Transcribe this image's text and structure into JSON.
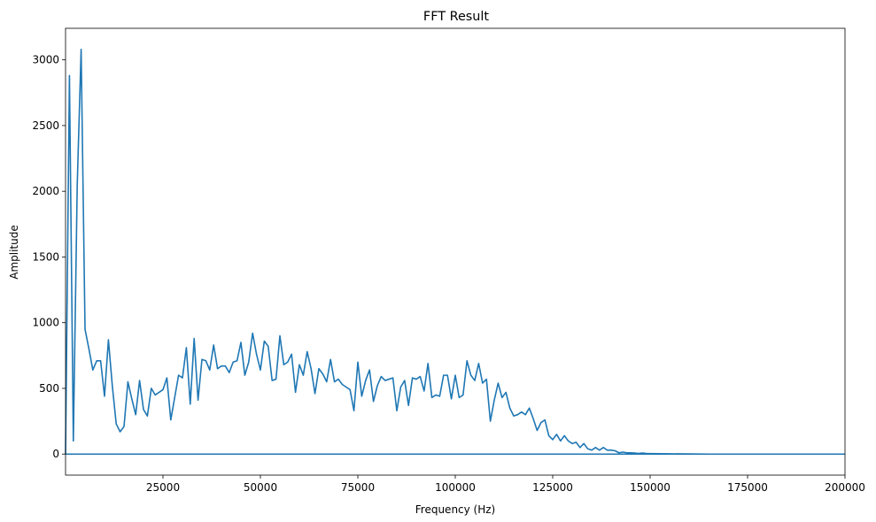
{
  "chart_data": {
    "type": "line",
    "title": "FFT Result",
    "xlabel": "Frequency (Hz)",
    "ylabel": "Amplitude",
    "xlim": [
      0,
      200000
    ],
    "ylim": [
      -160,
      3240
    ],
    "xticks": [
      25000,
      50000,
      75000,
      100000,
      125000,
      150000,
      175000,
      200000
    ],
    "yticks": [
      0,
      500,
      1000,
      1500,
      2000,
      2500,
      3000
    ],
    "grid": false,
    "legend": "none",
    "line_color": "#1f77b4",
    "series": [
      {
        "x": [
          0,
          1000,
          2000,
          3000,
          4000,
          5000,
          6000,
          7000,
          8000,
          9000,
          10000,
          11000,
          12000,
          13000,
          14000,
          15000,
          16000,
          17000,
          18000,
          19000,
          20000,
          21000,
          22000,
          23000,
          24000,
          25000,
          26000,
          27000,
          28000,
          29000,
          30000,
          31000,
          32000,
          33000,
          34000,
          35000,
          36000,
          37000,
          38000,
          39000,
          40000,
          41000,
          42000,
          43000,
          44000,
          45000,
          46000,
          47000,
          48000,
          49000,
          50000,
          51000,
          52000,
          53000,
          54000,
          55000,
          56000,
          57000,
          58000,
          59000,
          60000,
          61000,
          62000,
          63000,
          64000,
          65000,
          66000,
          67000,
          68000,
          69000,
          70000,
          71000,
          72000,
          73000,
          74000,
          75000,
          76000,
          77000,
          78000,
          79000,
          80000,
          81000,
          82000,
          83000,
          84000,
          85000,
          86000,
          87000,
          88000,
          89000,
          90000,
          91000,
          92000,
          93000,
          94000,
          95000,
          96000,
          97000,
          98000,
          99000,
          100000,
          101000,
          102000,
          103000,
          104000,
          105000,
          106000,
          107000,
          108000,
          109000,
          110000,
          111000,
          112000,
          113000,
          114000,
          115000,
          116000,
          117000,
          118000,
          119000,
          120000,
          121000,
          122000,
          123000,
          124000,
          125000,
          126000,
          127000,
          128000,
          129000,
          130000,
          131000,
          132000,
          133000,
          134000,
          135000,
          136000,
          137000,
          138000,
          139000,
          140000,
          141000,
          142000,
          143000,
          144000,
          145000,
          146000,
          147000,
          148000,
          149000,
          150000,
          152000,
          155000,
          160000,
          165000,
          170000,
          175000,
          180000,
          190000,
          200000
        ],
        "y": [
          0,
          2880,
          100,
          2050,
          3080,
          950,
          800,
          640,
          710,
          710,
          440,
          870,
          520,
          230,
          170,
          210,
          550,
          420,
          300,
          560,
          340,
          290,
          500,
          450,
          470,
          490,
          580,
          260,
          430,
          600,
          580,
          810,
          380,
          880,
          410,
          720,
          710,
          640,
          830,
          650,
          670,
          670,
          620,
          700,
          710,
          850,
          600,
          700,
          920,
          760,
          640,
          860,
          820,
          560,
          570,
          900,
          680,
          700,
          760,
          470,
          680,
          600,
          780,
          650,
          460,
          650,
          610,
          550,
          720,
          550,
          570,
          530,
          510,
          490,
          330,
          700,
          440,
          560,
          640,
          400,
          520,
          590,
          560,
          570,
          580,
          330,
          510,
          560,
          370,
          580,
          570,
          590,
          480,
          690,
          430,
          450,
          440,
          600,
          600,
          420,
          600,
          430,
          450,
          710,
          600,
          560,
          690,
          540,
          570,
          250,
          410,
          540,
          430,
          470,
          350,
          290,
          300,
          320,
          300,
          350,
          270,
          180,
          240,
          260,
          140,
          110,
          150,
          100,
          140,
          100,
          80,
          90,
          50,
          80,
          40,
          30,
          50,
          30,
          50,
          30,
          30,
          25,
          10,
          15,
          10,
          10,
          8,
          5,
          8,
          5,
          4,
          3,
          2,
          1,
          0,
          0,
          0,
          0,
          0,
          0
        ]
      },
      {
        "x": [
          0,
          200000
        ],
        "y": [
          0,
          0
        ]
      }
    ]
  }
}
